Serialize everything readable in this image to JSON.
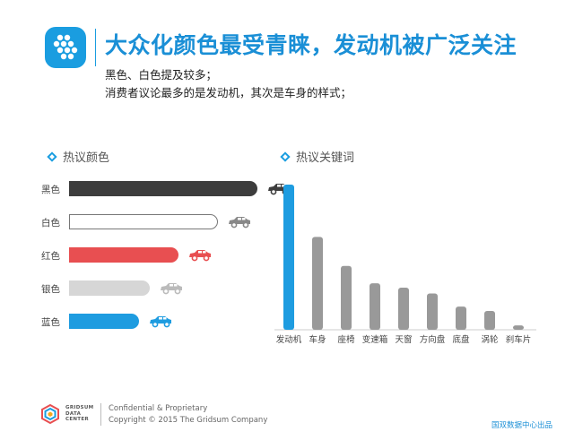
{
  "header": {
    "title": "大众化颜色最受青睐，发动机被广泛关注",
    "subtitle_1": "黑色、白色提及较多；",
    "subtitle_2": "消费者议论最多的是发动机，其次是车身的样式；"
  },
  "colors_accent": {
    "brand_blue": "#1a9de0",
    "title_blue": "#1a8fd6"
  },
  "icons": {
    "logo": "grid-dots-logo-icon",
    "section_marker": "diamond-icon",
    "car": "car-icon",
    "footer_logo": "gridsum-logo-icon"
  },
  "chart_data": [
    {
      "type": "bar",
      "orientation": "horizontal",
      "title": "热议颜色",
      "categories": [
        "黑色",
        "白色",
        "红色",
        "银色",
        "蓝色"
      ],
      "values": [
        100,
        79,
        58,
        43,
        37
      ],
      "value_unit": "relative",
      "fills": [
        "#3d3d3d",
        "#ffffff",
        "#e84f51",
        "#d6d6d6",
        "#1e9ce0"
      ],
      "strokes": [
        "#3d3d3d",
        "#777777",
        "#e84f51",
        "#d6d6d6",
        "#1e9ce0"
      ],
      "car_icon_colors": [
        "#3d3d3d",
        "#888888",
        "#e84f51",
        "#bbbbbb",
        "#1e9ce0"
      ],
      "xlim": [
        0,
        100
      ],
      "grid": false,
      "legend": "none"
    },
    {
      "type": "bar",
      "title": "热议关键词",
      "categories": [
        "发动机",
        "车身",
        "座椅",
        "变速箱",
        "天窗",
        "方向盘",
        "底盘",
        "涡轮",
        "刹车片"
      ],
      "values": [
        100,
        64,
        44,
        32,
        29,
        25,
        16,
        13,
        3
      ],
      "value_unit": "relative",
      "highlight_color": "#1e9ce0",
      "base_color": "#999999",
      "ylim": [
        0,
        100
      ],
      "grid": false,
      "legend": "none"
    }
  ],
  "footer": {
    "org_name": "GRIDSUM\nDATA\nCENTER",
    "confidential": "Confidential & Proprietary",
    "copyright": "Copyright © 2015 The Gridsum Company",
    "source": "国双数据中心出品"
  }
}
